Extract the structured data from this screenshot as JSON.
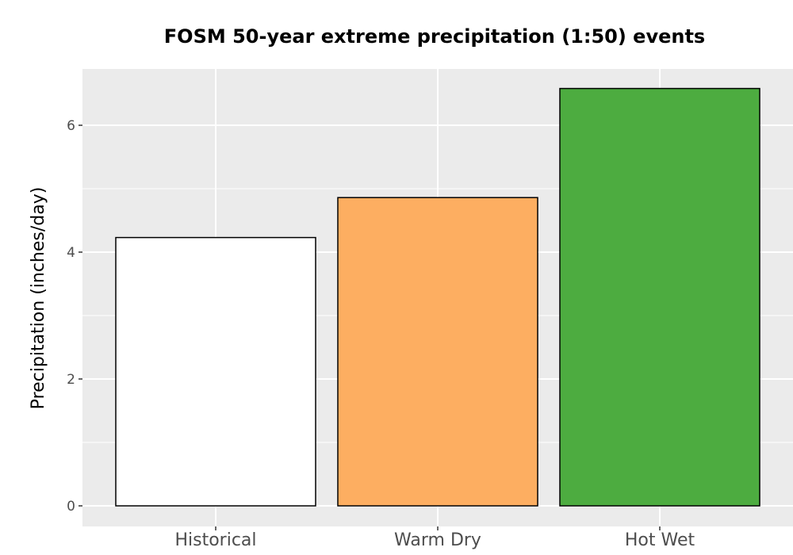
{
  "chart_data": {
    "type": "bar",
    "title": "FOSM 50-year extreme precipitation (1:50) events",
    "xlabel": "",
    "ylabel": "Precipitation (inches/day)",
    "categories": [
      "Historical",
      "Warm Dry",
      "Hot Wet"
    ],
    "values": [
      4.23,
      4.86,
      6.58
    ],
    "colors": [
      "#ffffff",
      "#fdae61",
      "#4dac40"
    ],
    "bar_outline": "#000000",
    "panel_background": "#ebebeb",
    "grid": true,
    "ylim": [
      -0.1,
      6.85
    ],
    "yticks": [
      0,
      2,
      4,
      6
    ],
    "ytick_labels": [
      "0",
      "2",
      "4",
      "6"
    ],
    "legend": "none"
  }
}
